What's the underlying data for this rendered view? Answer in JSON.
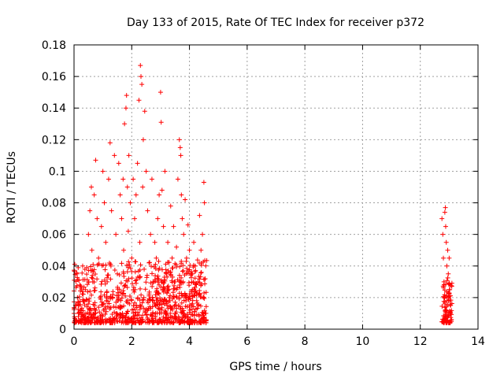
{
  "chart_data": {
    "type": "scatter",
    "title": "Day 133 of 2015, Rate Of TEC Index for receiver p372",
    "xlabel": "GPS time / hours",
    "ylabel": "ROTI / TECUs",
    "xlim": [
      0,
      14
    ],
    "ylim": [
      0,
      0.18
    ],
    "xticks": [
      0,
      2,
      4,
      6,
      8,
      10,
      12,
      14
    ],
    "xtick_labels": [
      "0",
      "2",
      "4",
      "6",
      "8",
      "10",
      "12",
      "14"
    ],
    "yticks": [
      0,
      0.02,
      0.04,
      0.06,
      0.08,
      0.1,
      0.12,
      0.14,
      0.16,
      0.18
    ],
    "ytick_labels": [
      "0",
      "0.02",
      "0.04",
      "0.06",
      "0.08",
      "0.1",
      "0.12",
      "0.14",
      "0.16",
      "0.18"
    ],
    "grid": true,
    "marker": "+",
    "series": [
      {
        "name": "ROTI",
        "color": "#ff0000",
        "points": [
          [
            0.0,
            0.01
          ],
          [
            0.05,
            0.015
          ],
          [
            0.1,
            0.035
          ],
          [
            0.12,
            0.02
          ],
          [
            0.15,
            0.008
          ],
          [
            0.2,
            0.028
          ],
          [
            0.25,
            0.012
          ],
          [
            0.3,
            0.04
          ],
          [
            0.35,
            0.018
          ],
          [
            0.4,
            0.025
          ],
          [
            0.45,
            0.007
          ],
          [
            0.5,
            0.06
          ],
          [
            0.55,
            0.075
          ],
          [
            0.6,
            0.09
          ],
          [
            0.62,
            0.05
          ],
          [
            0.65,
            0.03
          ],
          [
            0.7,
            0.085
          ],
          [
            0.72,
            0.015
          ],
          [
            0.75,
            0.107
          ],
          [
            0.8,
            0.07
          ],
          [
            0.85,
            0.045
          ],
          [
            0.9,
            0.02
          ],
          [
            0.95,
            0.065
          ],
          [
            1.0,
            0.1
          ],
          [
            1.02,
            0.012
          ],
          [
            1.05,
            0.08
          ],
          [
            1.1,
            0.055
          ],
          [
            1.12,
            0.018
          ],
          [
            1.15,
            0.03
          ],
          [
            1.2,
            0.095
          ],
          [
            1.25,
            0.118
          ],
          [
            1.28,
            0.04
          ],
          [
            1.3,
            0.075
          ],
          [
            1.35,
            0.022
          ],
          [
            1.4,
            0.11
          ],
          [
            1.45,
            0.06
          ],
          [
            1.5,
            0.035
          ],
          [
            1.55,
            0.105
          ],
          [
            1.6,
            0.085
          ],
          [
            1.62,
            0.014
          ],
          [
            1.65,
            0.07
          ],
          [
            1.7,
            0.095
          ],
          [
            1.72,
            0.05
          ],
          [
            1.75,
            0.13
          ],
          [
            1.78,
            0.028
          ],
          [
            1.8,
            0.14
          ],
          [
            1.82,
            0.148
          ],
          [
            1.85,
            0.09
          ],
          [
            1.88,
            0.062
          ],
          [
            1.9,
            0.11
          ],
          [
            1.92,
            0.016
          ],
          [
            1.95,
            0.08
          ],
          [
            2.0,
            0.045
          ],
          [
            2.05,
            0.095
          ],
          [
            2.1,
            0.07
          ],
          [
            2.12,
            0.025
          ],
          [
            2.15,
            0.085
          ],
          [
            2.2,
            0.105
          ],
          [
            2.25,
            0.145
          ],
          [
            2.28,
            0.055
          ],
          [
            2.3,
            0.167
          ],
          [
            2.32,
            0.16
          ],
          [
            2.35,
            0.155
          ],
          [
            2.38,
            0.09
          ],
          [
            2.4,
            0.12
          ],
          [
            2.42,
            0.02
          ],
          [
            2.45,
            0.138
          ],
          [
            2.5,
            0.1
          ],
          [
            2.55,
            0.075
          ],
          [
            2.6,
            0.042
          ],
          [
            2.65,
            0.06
          ],
          [
            2.7,
            0.095
          ],
          [
            2.72,
            0.018
          ],
          [
            2.75,
            0.03
          ],
          [
            2.8,
            0.055
          ],
          [
            2.85,
            0.045
          ],
          [
            2.9,
            0.07
          ],
          [
            2.95,
            0.085
          ],
          [
            3.0,
            0.15
          ],
          [
            3.02,
            0.131
          ],
          [
            3.05,
            0.088
          ],
          [
            3.08,
            0.025
          ],
          [
            3.1,
            0.065
          ],
          [
            3.15,
            0.1
          ],
          [
            3.2,
            0.035
          ],
          [
            3.25,
            0.055
          ],
          [
            3.3,
            0.02
          ],
          [
            3.35,
            0.078
          ],
          [
            3.4,
            0.045
          ],
          [
            3.45,
            0.065
          ],
          [
            3.5,
            0.03
          ],
          [
            3.55,
            0.052
          ],
          [
            3.6,
            0.095
          ],
          [
            3.62,
            0.015
          ],
          [
            3.65,
            0.12
          ],
          [
            3.68,
            0.115
          ],
          [
            3.7,
            0.11
          ],
          [
            3.72,
            0.085
          ],
          [
            3.75,
            0.07
          ],
          [
            3.78,
            0.03
          ],
          [
            3.8,
            0.06
          ],
          [
            3.85,
            0.082
          ],
          [
            3.9,
            0.045
          ],
          [
            3.95,
            0.066
          ],
          [
            4.0,
            0.05
          ],
          [
            4.02,
            0.012
          ],
          [
            4.05,
            0.035
          ],
          [
            4.1,
            0.025
          ],
          [
            4.15,
            0.055
          ],
          [
            4.2,
            0.04
          ],
          [
            4.25,
            0.018
          ],
          [
            4.3,
            0.03
          ],
          [
            4.35,
            0.072
          ],
          [
            4.4,
            0.05
          ],
          [
            4.45,
            0.06
          ],
          [
            4.48,
            0.02
          ],
          [
            4.5,
            0.093
          ],
          [
            4.52,
            0.08
          ],
          [
            4.55,
            0.01
          ],
          [
            4.58,
            0.006
          ],
          [
            12.75,
            0.07
          ],
          [
            12.78,
            0.06
          ],
          [
            12.8,
            0.045
          ],
          [
            12.82,
            0.03
          ],
          [
            12.84,
            0.02
          ],
          [
            12.85,
            0.074
          ],
          [
            12.86,
            0.012
          ],
          [
            12.87,
            0.077
          ],
          [
            12.88,
            0.065
          ],
          [
            12.9,
            0.055
          ],
          [
            12.92,
            0.04
          ],
          [
            12.93,
            0.008
          ],
          [
            12.95,
            0.05
          ],
          [
            12.97,
            0.035
          ],
          [
            12.98,
            0.018
          ],
          [
            13.0,
            0.045
          ],
          [
            13.02,
            0.025
          ],
          [
            13.03,
            0.01
          ],
          [
            13.05,
            0.015
          ],
          [
            13.08,
            0.006
          ]
        ]
      }
    ]
  }
}
